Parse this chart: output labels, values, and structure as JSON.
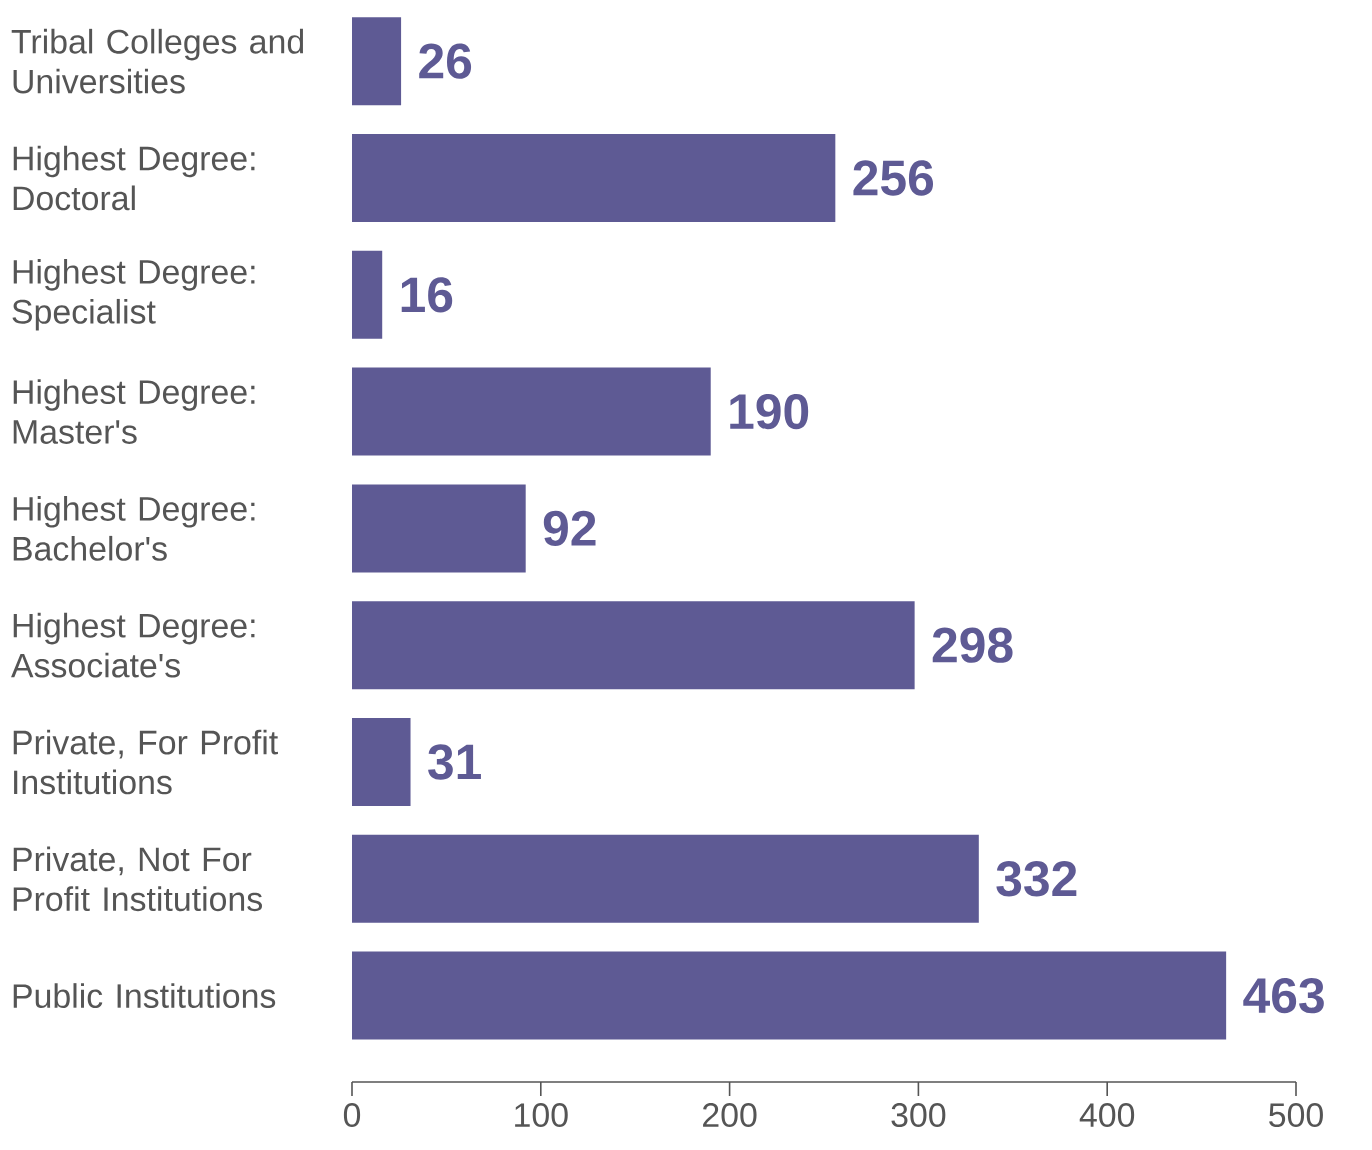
{
  "chart_data": {
    "type": "bar",
    "orientation": "horizontal",
    "categories": [
      "Tribal Colleges and Universities",
      "Highest Degree: Doctoral",
      "Highest Degree: Specialist",
      "Highest Degree: Master's",
      "Highest Degree: Bachelor's",
      "Highest Degree: Associate's",
      "Private, For Profit Institutions",
      "Private, Not For Profit Institutions",
      "Public Institutions"
    ],
    "values": [
      26,
      256,
      16,
      190,
      92,
      298,
      31,
      332,
      463
    ],
    "color": "#5e5a94",
    "data_labels": true,
    "xlim": [
      0,
      500
    ],
    "xticks": [
      0,
      100,
      200,
      300,
      400,
      500
    ],
    "grid": false
  }
}
